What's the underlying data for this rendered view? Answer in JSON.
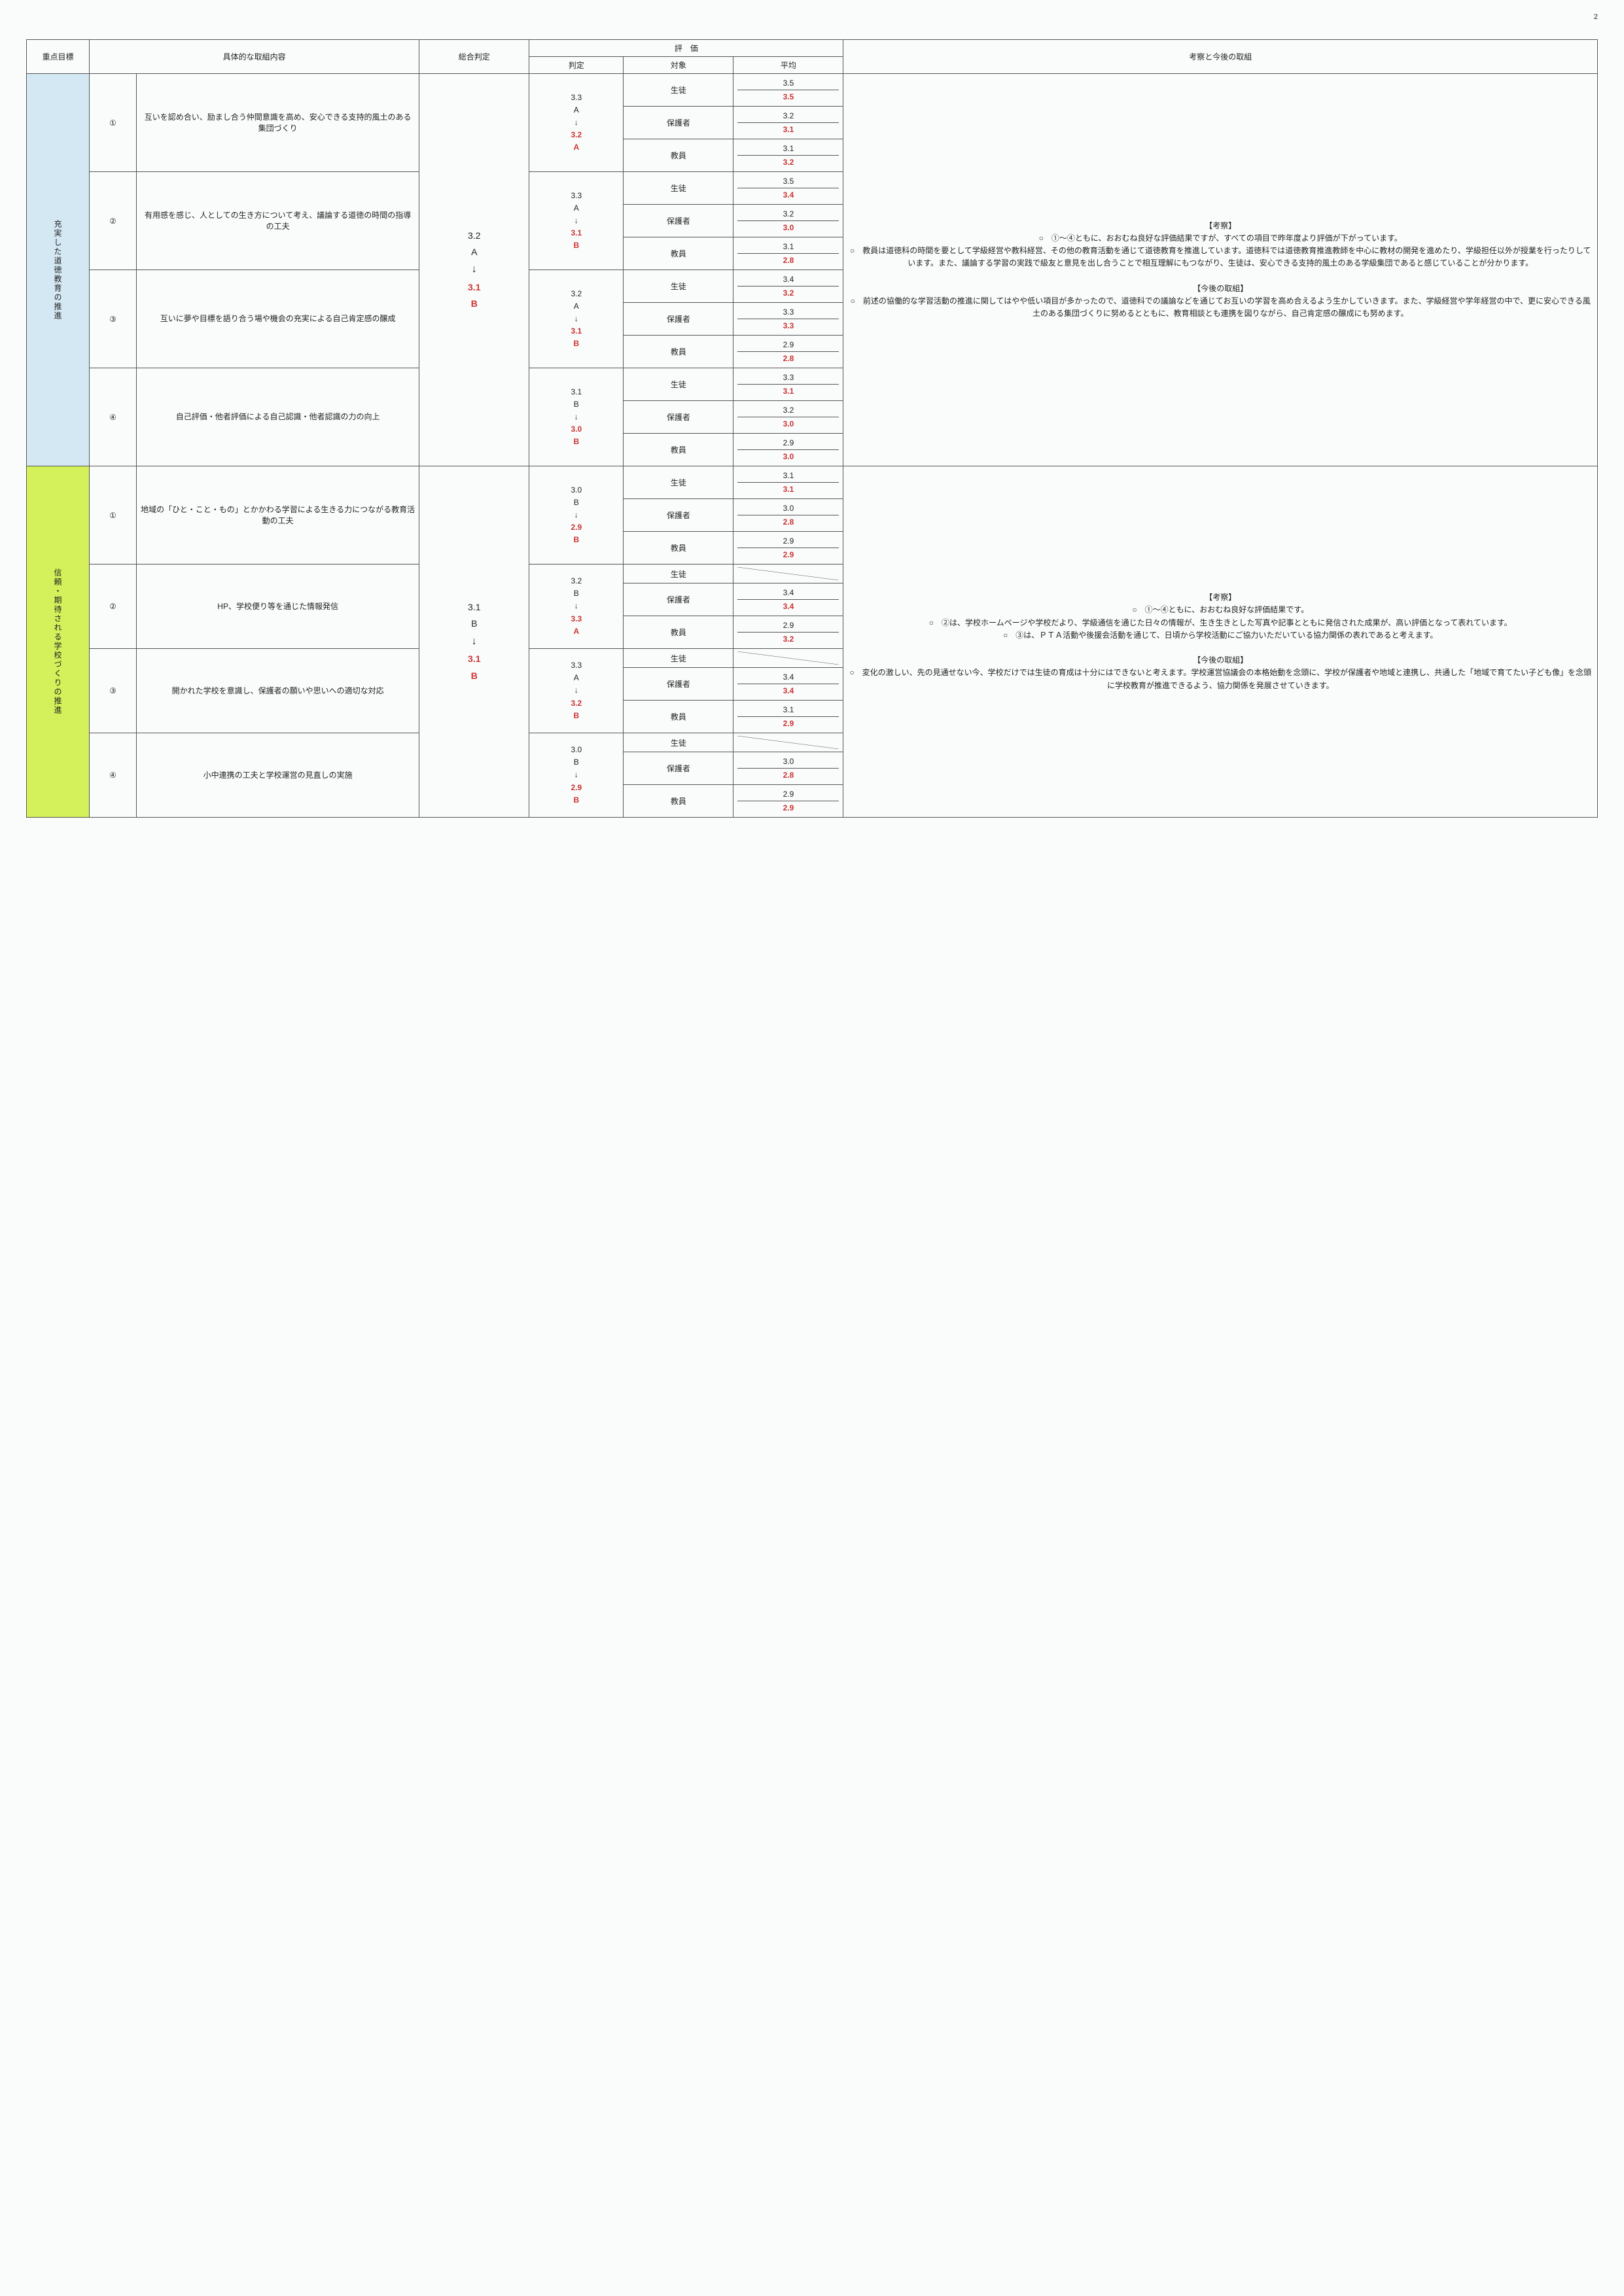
{
  "page_number": "2",
  "headers": {
    "goal": "重点目標",
    "content": "具体的な取組内容",
    "overall": "総合判定",
    "eval": "評　価",
    "judge": "判定",
    "target": "対象",
    "avg": "平均",
    "comment": "考察と今後の取組"
  },
  "targets": {
    "student": "生徒",
    "guardian": "保護者",
    "teacher": "教員"
  },
  "sections": [
    {
      "goal_label": "充実した道徳教育の推進",
      "goal_class": "goal-blue",
      "overall": {
        "prev": "3.2",
        "prev_grade": "A",
        "cur": "3.1",
        "cur_grade": "B"
      },
      "comment_html": "【考察】<br>○　①～④ともに、おおむね良好な評価結果ですが、すべての項目で昨年度より評価が下がっています。<br>○　教員は道徳科の時間を要として学級経営や教科経営、その他の教育活動を通じて道徳教育を推進しています。道徳科では道徳教育推進教師を中心に教材の開発を進めたり、学級担任以外が授業を行ったりしています。また、議論する学習の実践で級友と意見を出し合うことで相互理解にもつながり、生徒は、安心できる支持的風土のある学級集団であると感じていることが分かります。<br><br>【今後の取組】<br>○　前述の協働的な学習活動の推進に関してはやや低い項目が多かったので、道徳科での議論などを通じてお互いの学習を高め合えるよう生かしていきます。また、学級経営や学年経営の中で、更に安心できる風土のある集団づくりに努めるとともに、教育相談とも連携を図りながら、自己肯定感の醸成にも努めます。",
      "items": [
        {
          "num": "①",
          "desc": "互いを認め合い、励まし合う仲間意識を高め、安心できる支持的風土のある集団づくり",
          "judge": {
            "prev": "3.3",
            "prev_g": "A",
            "cur": "3.2",
            "cur_g": "A"
          },
          "rows": [
            {
              "t": "student",
              "p": "3.5",
              "c": "3.5"
            },
            {
              "t": "guardian",
              "p": "3.2",
              "c": "3.1"
            },
            {
              "t": "teacher",
              "p": "3.1",
              "c": "3.2"
            }
          ]
        },
        {
          "num": "②",
          "desc": "有用感を感じ、人としての生き方について考え、議論する道徳の時間の指導の工夫",
          "judge": {
            "prev": "3.3",
            "prev_g": "A",
            "cur": "3.1",
            "cur_g": "B"
          },
          "rows": [
            {
              "t": "student",
              "p": "3.5",
              "c": "3.4"
            },
            {
              "t": "guardian",
              "p": "3.2",
              "c": "3.0"
            },
            {
              "t": "teacher",
              "p": "3.1",
              "c": "2.8"
            }
          ]
        },
        {
          "num": "③",
          "desc": "互いに夢や目標を語り合う場や機会の充実による自己肯定感の醸成",
          "judge": {
            "prev": "3.2",
            "prev_g": "A",
            "cur": "3.1",
            "cur_g": "B"
          },
          "rows": [
            {
              "t": "student",
              "p": "3.4",
              "c": "3.2"
            },
            {
              "t": "guardian",
              "p": "3.3",
              "c": "3.3"
            },
            {
              "t": "teacher",
              "p": "2.9",
              "c": "2.8"
            }
          ]
        },
        {
          "num": "④",
          "desc": "自己評価・他者評価による自己認識・他者認識の力の向上",
          "judge": {
            "prev": "3.1",
            "prev_g": "B",
            "cur": "3.0",
            "cur_g": "B"
          },
          "rows": [
            {
              "t": "student",
              "p": "3.3",
              "c": "3.1"
            },
            {
              "t": "guardian",
              "p": "3.2",
              "c": "3.0"
            },
            {
              "t": "teacher",
              "p": "2.9",
              "c": "3.0"
            }
          ]
        }
      ]
    },
    {
      "goal_label": "信頼・期待される学校づくりの推進",
      "goal_class": "goal-green",
      "overall": {
        "prev": "3.1",
        "prev_grade": "B",
        "cur": "3.1",
        "cur_grade": "B"
      },
      "comment_html": "【考察】<br>○　①～④ともに、おおむね良好な評価結果です。<br>○　②は、学校ホームページや学校だより、学級通信を通じた日々の情報が、生き生きとした写真や記事とともに発信された成果が、高い評価となって表れています。<br>○　③は、ＰＴＡ活動や後援会活動を通じて、日頃から学校活動にご協力いただいている協力関係の表れであると考えます。<br><br>【今後の取組】<br>○　変化の激しい、先の見通せない今、学校だけでは生徒の育成は十分にはできないと考えます。学校運営協議会の本格始動を念頭に、学校が保護者や地域と連携し、共通した「地域で育てたい子ども像」を念頭に学校教育が推進できるよう、協力関係を発展させていきます。",
      "items": [
        {
          "num": "①",
          "desc": "地域の「ひと・こと・もの」とかかわる学習による生きる力につながる教育活動の工夫",
          "judge": {
            "prev": "3.0",
            "prev_g": "B",
            "cur": "2.9",
            "cur_g": "B"
          },
          "rows": [
            {
              "t": "student",
              "p": "3.1",
              "c": "3.1"
            },
            {
              "t": "guardian",
              "p": "3.0",
              "c": "2.8"
            },
            {
              "t": "teacher",
              "p": "2.9",
              "c": "2.9"
            }
          ]
        },
        {
          "num": "②",
          "desc": "HP、学校便り等を通じた情報発信",
          "judge": {
            "prev": "3.2",
            "prev_g": "B",
            "cur": "3.3",
            "cur_g": "A"
          },
          "rows": [
            {
              "t": "student",
              "p": null,
              "c": null
            },
            {
              "t": "guardian",
              "p": "3.4",
              "c": "3.4"
            },
            {
              "t": "teacher",
              "p": "2.9",
              "c": "3.2"
            }
          ]
        },
        {
          "num": "③",
          "desc": "開かれた学校を意識し、保護者の願いや思いへの適切な対応",
          "judge": {
            "prev": "3.3",
            "prev_g": "A",
            "cur": "3.2",
            "cur_g": "B"
          },
          "rows": [
            {
              "t": "student",
              "p": null,
              "c": null
            },
            {
              "t": "guardian",
              "p": "3.4",
              "c": "3.4"
            },
            {
              "t": "teacher",
              "p": "3.1",
              "c": "2.9"
            }
          ]
        },
        {
          "num": "④",
          "desc": "小中連携の工夫と学校運営の見直しの実施",
          "judge": {
            "prev": "3.0",
            "prev_g": "B",
            "cur": "2.9",
            "cur_g": "B"
          },
          "rows": [
            {
              "t": "student",
              "p": null,
              "c": null
            },
            {
              "t": "guardian",
              "p": "3.0",
              "c": "2.8"
            },
            {
              "t": "teacher",
              "p": "2.9",
              "c": "2.9"
            }
          ]
        }
      ]
    }
  ]
}
